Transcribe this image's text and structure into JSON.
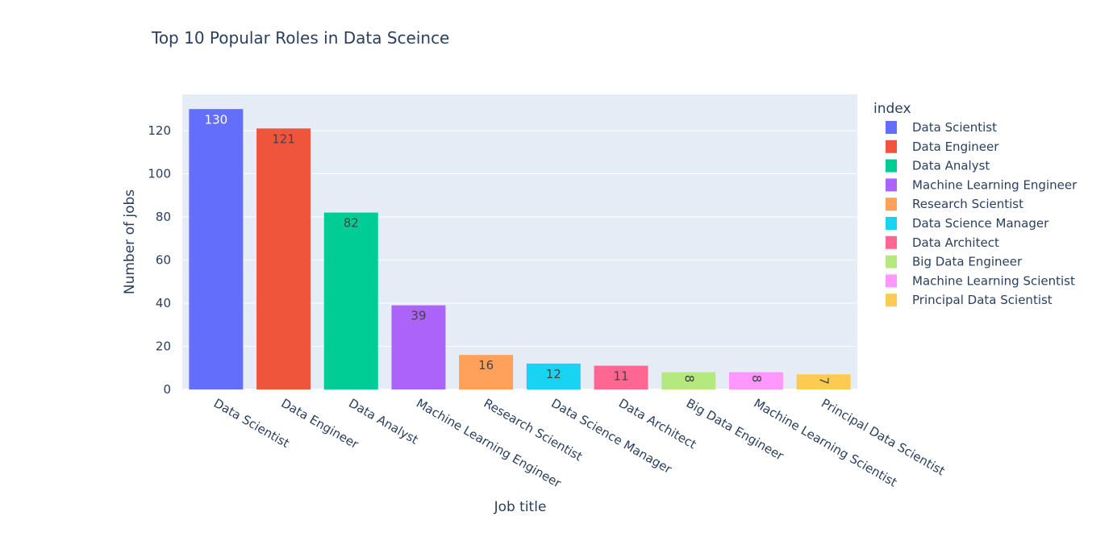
{
  "chart_data": {
    "type": "bar",
    "title": "Top 10 Popular Roles in Data Sceince",
    "xlabel": "Job title",
    "ylabel": "Number of jobs",
    "ylim": [
      0,
      138
    ],
    "yticks": [
      0,
      20,
      40,
      60,
      80,
      100,
      120
    ],
    "grid": true,
    "legend_title": "index",
    "legend_position": "right",
    "categories": [
      "Data Scientist",
      "Data Engineer",
      "Data Analyst",
      "Machine Learning Engineer",
      "Research Scientist",
      "Data Science Manager",
      "Data Architect",
      "Big Data Engineer",
      "Machine Learning Scientist",
      "Principal Data Scientist"
    ],
    "values": [
      130,
      121,
      82,
      39,
      16,
      12,
      11,
      8,
      8,
      7
    ],
    "colors": [
      "#636efa",
      "#EF553B",
      "#00cc96",
      "#ab63fa",
      "#FFA15A",
      "#19d3f3",
      "#FF6692",
      "#B6E880",
      "#FF97FF",
      "#FECB52"
    ],
    "label_colors": [
      "#ffffff",
      "#444444",
      "#444444",
      "#444444",
      "#444444",
      "#444444",
      "#444444",
      "#444444",
      "#444444",
      "#444444"
    ],
    "plot_background": "#e5ecf6"
  }
}
